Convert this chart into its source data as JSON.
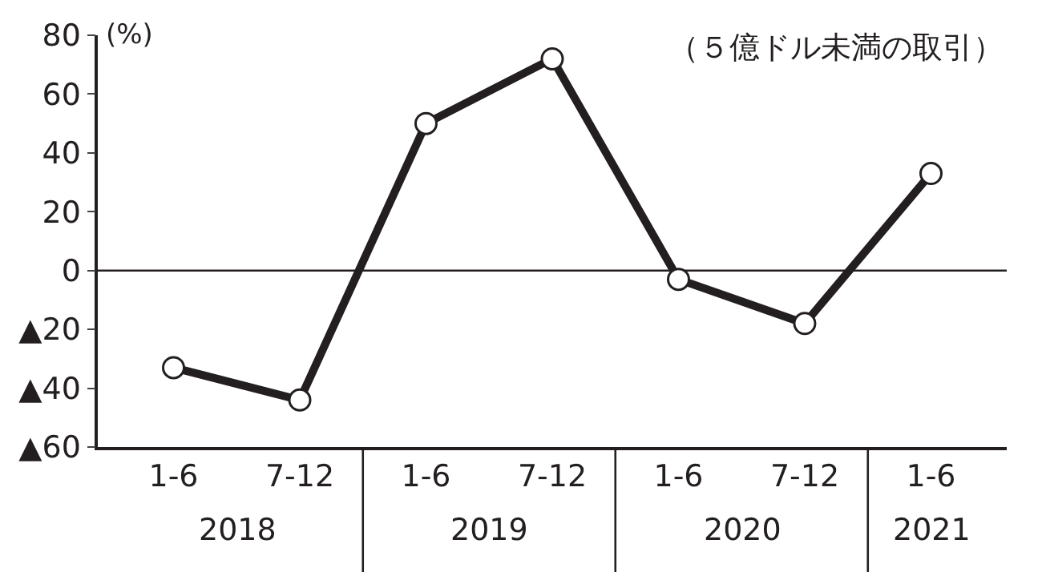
{
  "chart_data": {
    "type": "line",
    "ylabel": "(%)",
    "categories": [
      "1-6",
      "7-12",
      "1-6",
      "7-12",
      "1-6",
      "7-12",
      "1-6"
    ],
    "series": [
      {
        "color": "#231f20",
        "values": [
          -33,
          -44,
          50,
          72,
          -3,
          -18,
          33
        ]
      }
    ],
    "ylim": [
      -60,
      80
    ],
    "yticks": [
      80,
      60,
      40,
      20,
      0,
      {
        "value": -20,
        "label": "▲20"
      },
      {
        "value": -40,
        "label": "▲40"
      },
      {
        "value": -60,
        "label": "▲60"
      }
    ],
    "ref_lines": [
      {
        "axis": "y",
        "value": 0,
        "color": "#231f20"
      }
    ],
    "annotations": [
      "（５億ドル未満の取引）",
      "2018",
      "2019",
      "2020",
      "2021"
    ],
    "marker": "circle",
    "line_style": "solid",
    "grid": false,
    "legend": false
  }
}
